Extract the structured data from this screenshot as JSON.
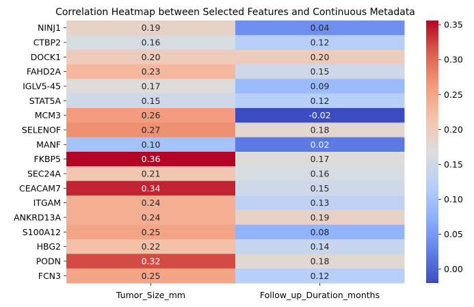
{
  "chart_data": {
    "type": "heatmap",
    "title": "Correlation Heatmap between Selected Features and Continuous Metadata",
    "xlabel": "",
    "ylabel": "",
    "columns": [
      "Tumor_Size_mm",
      "Follow_up_Duration_months"
    ],
    "rows": [
      "NINJ1",
      "CTBP2",
      "DOCK1",
      "FAHD2A",
      "IGLV5-45",
      "STAT5A",
      "MCM3",
      "SELENOF",
      "MANF",
      "FKBP5",
      "SEC24A",
      "CEACAM7",
      "ITGAM",
      "ANKRD13A",
      "S100A12",
      "HBG2",
      "PODN",
      "FCN3"
    ],
    "values": [
      [
        0.19,
        0.04
      ],
      [
        0.16,
        0.12
      ],
      [
        0.2,
        0.2
      ],
      [
        0.23,
        0.15
      ],
      [
        0.17,
        0.09
      ],
      [
        0.15,
        0.12
      ],
      [
        0.26,
        -0.02
      ],
      [
        0.27,
        0.18
      ],
      [
        0.1,
        0.02
      ],
      [
        0.36,
        0.17
      ],
      [
        0.21,
        0.16
      ],
      [
        0.34,
        0.15
      ],
      [
        0.24,
        0.13
      ],
      [
        0.24,
        0.19
      ],
      [
        0.25,
        0.08
      ],
      [
        0.22,
        0.14
      ],
      [
        0.32,
        0.18
      ],
      [
        0.25,
        0.12
      ]
    ],
    "value_labels": [
      [
        "0.19",
        "0.04"
      ],
      [
        "0.16",
        "0.12"
      ],
      [
        "0.20",
        "0.20"
      ],
      [
        "0.23",
        "0.15"
      ],
      [
        "0.17",
        "0.09"
      ],
      [
        "0.15",
        "0.12"
      ],
      [
        "0.26",
        "-0.02"
      ],
      [
        "0.27",
        "0.18"
      ],
      [
        "0.10",
        "0.02"
      ],
      [
        "0.36",
        "0.17"
      ],
      [
        "0.21",
        "0.16"
      ],
      [
        "0.34",
        "0.15"
      ],
      [
        "0.24",
        "0.13"
      ],
      [
        "0.24",
        "0.19"
      ],
      [
        "0.25",
        "0.08"
      ],
      [
        "0.22",
        "0.14"
      ],
      [
        "0.32",
        "0.18"
      ],
      [
        "0.25",
        "0.12"
      ]
    ],
    "colormap": "coolwarm",
    "color_range": [
      -0.02,
      0.356
    ],
    "colorbar_ticks": [
      0.0,
      0.05,
      0.1,
      0.15,
      0.2,
      0.25,
      0.3,
      0.35
    ],
    "colorbar_tick_labels": [
      "0.00",
      "0.05",
      "0.10",
      "0.15",
      "0.20",
      "0.25",
      "0.30",
      "0.35"
    ],
    "grid": false,
    "legend": "colorbar-right"
  }
}
